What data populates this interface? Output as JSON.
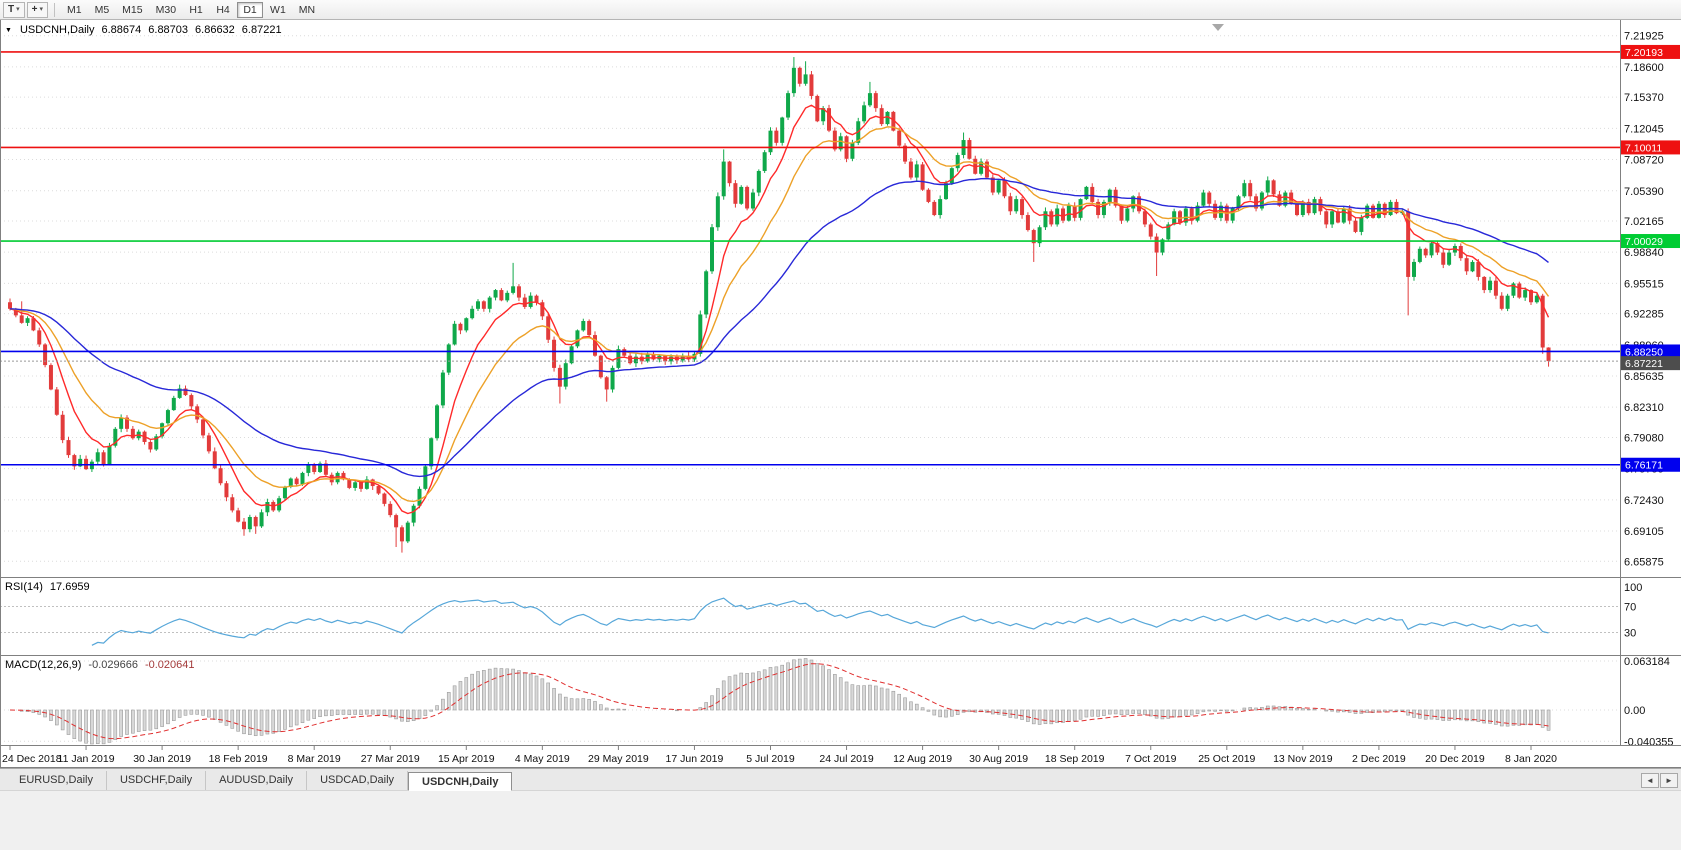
{
  "glyphs": {
    "symbol_dropdown": "▼",
    "scroll_left": "◄",
    "scroll_right": "►"
  },
  "toolbar": {
    "icons": {
      "templates_glyph": "T",
      "crosshair_glyph": "+",
      "caret_glyph": "▾"
    },
    "timeframes": [
      "M1",
      "M5",
      "M15",
      "M30",
      "H1",
      "H4",
      "D1",
      "W1",
      "MN"
    ],
    "active_timeframe": "D1"
  },
  "chart": {
    "title_symbol": "USDCNH,Daily",
    "title_open": "6.88674",
    "title_high": "6.88703",
    "title_low": "6.86632",
    "title_close": "6.87221",
    "price_axis_labels": [
      "7.21925",
      "7.18600",
      "7.15370",
      "7.12045",
      "7.08720",
      "7.05390",
      "7.02165",
      "6.98840",
      "6.95515",
      "6.92285",
      "6.88960",
      "6.85635",
      "6.82310",
      "6.79080",
      "6.75755",
      "6.72430",
      "6.69105",
      "6.65875"
    ],
    "date_axis_labels": [
      "24 Dec 2018",
      "11 Jan 2019",
      "30 Jan 2019",
      "18 Feb 2019",
      "8 Mar 2019",
      "27 Mar 2019",
      "15 Apr 2019",
      "4 May 2019",
      "29 May 2019",
      "17 Jun 2019",
      "5 Jul 2019",
      "24 Jul 2019",
      "12 Aug 2019",
      "30 Aug 2019",
      "18 Sep 2019",
      "7 Oct 2019",
      "25 Oct 2019",
      "13 Nov 2019",
      "2 Dec 2019",
      "20 Dec 2019",
      "8 Jan 2020"
    ],
    "levels": [
      {
        "value": 7.20193,
        "label": "7.20193",
        "color": "#ee1111",
        "type": "resistance"
      },
      {
        "value": 7.10011,
        "label": "7.10011",
        "color": "#ee1111",
        "type": "resistance"
      },
      {
        "value": 7.00029,
        "label": "7.00029",
        "color": "#00cc33",
        "type": "pivot"
      },
      {
        "value": 6.8825,
        "label": "6.88250",
        "color": "#0000ee",
        "type": "support"
      },
      {
        "value": 6.76171,
        "label": "6.76171",
        "color": "#0000ee",
        "type": "support"
      }
    ],
    "current_price": {
      "value": 6.87221,
      "label": "6.87221",
      "badge_color": "#4d4d4d"
    },
    "colors": {
      "bull": "#0fa84a",
      "bear": "#e23b3b",
      "ma_fast": "#ff2a2a",
      "ma_mid": "#eda128",
      "ma_slow": "#2828d8",
      "rsi": "#57a7d9",
      "macd_bar_fill": "#d8d8d8",
      "macd_bar_stroke": "#9c9c9c",
      "macd_signal": "#e03030",
      "grid": "#dcdcdc"
    }
  },
  "chart_data": {
    "type": "candlestick",
    "symbol": "USDCNH",
    "timeframe": "Daily",
    "x_label_step": 13,
    "price_range": {
      "top": 7.236,
      "bottom": 6.642
    },
    "first_open": 6.935,
    "closes": [
      6.928,
      6.921,
      6.913,
      6.918,
      6.905,
      6.89,
      6.868,
      6.842,
      6.815,
      6.788,
      6.772,
      6.76,
      6.768,
      6.757,
      6.765,
      6.775,
      6.762,
      6.782,
      6.8,
      6.812,
      6.8,
      6.79,
      6.797,
      6.786,
      6.778,
      6.792,
      6.806,
      6.82,
      6.833,
      6.843,
      6.836,
      6.824,
      6.81,
      6.793,
      6.776,
      6.758,
      6.742,
      6.727,
      6.713,
      6.701,
      6.693,
      6.706,
      6.696,
      6.711,
      6.722,
      6.713,
      6.726,
      6.738,
      6.747,
      6.741,
      6.753,
      6.761,
      6.754,
      6.763,
      6.751,
      6.743,
      6.753,
      6.746,
      6.737,
      6.743,
      6.736,
      6.746,
      6.739,
      6.731,
      6.72,
      6.708,
      6.695,
      6.68,
      6.7,
      6.718,
      6.736,
      6.76,
      6.79,
      6.825,
      6.86,
      6.89,
      6.912,
      6.905,
      6.918,
      6.928,
      6.936,
      6.928,
      6.94,
      6.948,
      6.937,
      6.945,
      6.952,
      6.94,
      6.93,
      6.942,
      6.935,
      6.92,
      6.895,
      6.865,
      6.845,
      6.87,
      6.888,
      6.905,
      6.915,
      6.9,
      6.878,
      6.855,
      6.842,
      6.865,
      6.885,
      6.878,
      6.87,
      6.877,
      6.872,
      6.88,
      6.874,
      6.878,
      6.872,
      6.877,
      6.873,
      6.878,
      6.874,
      6.88,
      6.922,
      6.968,
      7.015,
      7.048,
      7.085,
      7.062,
      7.04,
      7.058,
      7.035,
      7.052,
      7.075,
      7.095,
      7.118,
      7.105,
      7.132,
      7.158,
      7.185,
      7.168,
      7.178,
      7.155,
      7.128,
      7.142,
      7.118,
      7.098,
      7.112,
      7.088,
      7.105,
      7.128,
      7.145,
      7.158,
      7.142,
      7.125,
      7.138,
      7.118,
      7.102,
      7.085,
      7.068,
      7.082,
      7.055,
      7.042,
      7.028,
      7.045,
      7.062,
      7.078,
      7.092,
      7.108,
      7.088,
      7.072,
      7.085,
      7.068,
      7.052,
      7.065,
      7.048,
      7.032,
      7.045,
      7.028,
      7.012,
      6.998,
      7.015,
      7.032,
      7.018,
      7.035,
      7.022,
      7.038,
      7.025,
      7.045,
      7.058,
      7.042,
      7.028,
      7.042,
      7.055,
      7.038,
      7.022,
      7.035,
      7.048,
      7.032,
      7.018,
      7.005,
      6.988,
      7.002,
      7.018,
      7.032,
      7.02,
      7.035,
      7.022,
      7.038,
      7.052,
      7.04,
      7.025,
      7.038,
      7.022,
      7.035,
      7.048,
      7.062,
      7.048,
      7.035,
      7.052,
      7.065,
      7.05,
      7.038,
      7.052,
      7.04,
      7.028,
      7.042,
      7.03,
      7.045,
      7.032,
      7.018,
      7.032,
      7.02,
      7.035,
      7.022,
      7.01,
      7.025,
      7.038,
      7.025,
      7.04,
      7.028,
      7.042,
      7.03,
      7.032,
      6.962,
      6.978,
      6.992,
      6.985,
      6.998,
      6.988,
      6.975,
      6.988,
      6.995,
      6.982,
      6.968,
      6.978,
      6.962,
      6.948,
      6.958,
      6.942,
      6.928,
      6.942,
      6.955,
      6.94,
      6.948,
      6.935,
      6.942,
      6.88674,
      6.87221
    ],
    "wick_overrides": {
      "2": {
        "h": 6.936
      },
      "40": {
        "l": 6.686
      },
      "42": {
        "l": 6.688
      },
      "66": {
        "l": 6.674
      },
      "67": {
        "l": 6.668
      },
      "86": {
        "h": 6.977
      },
      "94": {
        "l": 6.827
      },
      "102": {
        "l": 6.829
      },
      "122": {
        "h": 7.098
      },
      "134": {
        "h": 7.1965
      },
      "136": {
        "h": 7.192
      },
      "147": {
        "h": 7.17
      },
      "163": {
        "h": 7.116
      },
      "175": {
        "l": 6.978
      },
      "196": {
        "l": 6.963
      },
      "239": {
        "l": 6.921
      },
      "262": {
        "h": 6.944,
        "l": 6.88
      }
    },
    "last_candle": {
      "open": 6.88674,
      "high": 6.88703,
      "low": 6.86632,
      "close": 6.87221
    },
    "moving_averages": [
      {
        "name": "fast",
        "period": 8,
        "color_key": "ma_fast"
      },
      {
        "name": "mid",
        "period": 17,
        "color_key": "ma_mid"
      },
      {
        "name": "slow",
        "period": 45,
        "color_key": "ma_slow"
      }
    ]
  },
  "rsi_panel": {
    "label": "RSI(14)",
    "value": "17.6959",
    "period": 14,
    "axis_labels": [
      "100",
      "70",
      "30"
    ],
    "upper_level": 70,
    "lower_level": 30
  },
  "macd_panel": {
    "label": "MACD(12,26,9)",
    "main_value": "-0.029666",
    "signal_value": "-0.020641",
    "fast": 12,
    "slow": 26,
    "signal": 9,
    "axis_labels": [
      "0.063184",
      "0.00",
      "-0.040355"
    ]
  },
  "tabs": {
    "items": [
      "EURUSD,Daily",
      "USDCHF,Daily",
      "AUDUSD,Daily",
      "USDCAD,Daily",
      "USDCNH,Daily"
    ],
    "active": "USDCNH,Daily"
  }
}
